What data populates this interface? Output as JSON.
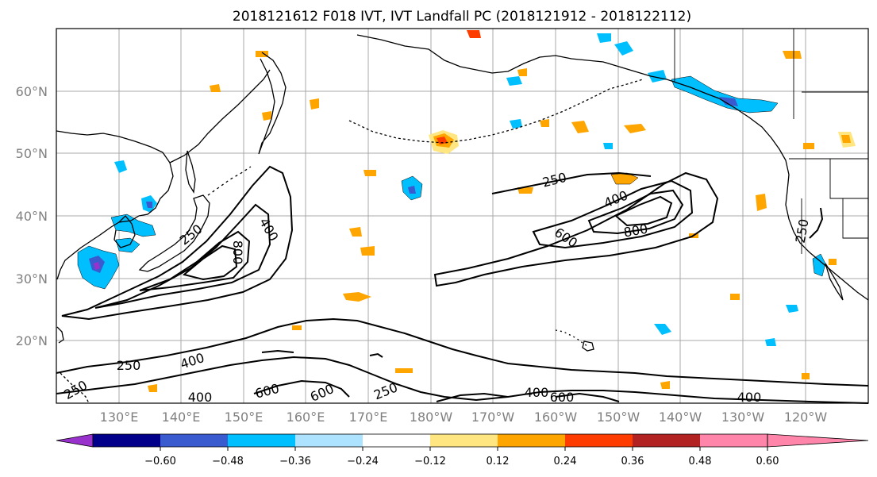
{
  "title": "2018121612 F018 IVT, IVT Landfall PC (2018121912 - 2018122112)",
  "map": {
    "lat_labels": [
      "60°N",
      "50°N",
      "40°N",
      "30°N",
      "20°N"
    ],
    "lon_labels": [
      "130°E",
      "140°E",
      "150°E",
      "160°E",
      "170°E",
      "180°W",
      "170°W",
      "160°W",
      "150°W",
      "140°W",
      "130°W",
      "120°W"
    ],
    "gridlines": true
  },
  "ivt_contour_labels": [
    "250",
    "400",
    "800",
    "250",
    "400",
    "800",
    "600",
    "250",
    "250",
    "400",
    "400",
    "600",
    "600",
    "250",
    "400",
    "600",
    "400",
    "250"
  ],
  "colorbar": {
    "ticks": [
      "−0.60",
      "−0.48",
      "−0.36",
      "−0.24",
      "−0.12",
      "0.12",
      "0.24",
      "0.36",
      "0.48",
      "0.60"
    ],
    "colors": [
      "#9932cc",
      "#00008b",
      "#3a5bd0",
      "#00bfff",
      "#aee3ff",
      "#ffffff",
      "#ffe680",
      "#ffa500",
      "#ff3c00",
      "#b22222",
      "#ff85ab"
    ],
    "extend": "both"
  },
  "pc_patch_colors": {
    "pos_low": "#ffe680",
    "pos_mid": "#ffa500",
    "pos_high": "#ff3c00",
    "neg_low": "#aee3ff",
    "neg_mid": "#00bfff",
    "neg_high": "#3a5bd0",
    "neg_max": "#9932cc"
  }
}
